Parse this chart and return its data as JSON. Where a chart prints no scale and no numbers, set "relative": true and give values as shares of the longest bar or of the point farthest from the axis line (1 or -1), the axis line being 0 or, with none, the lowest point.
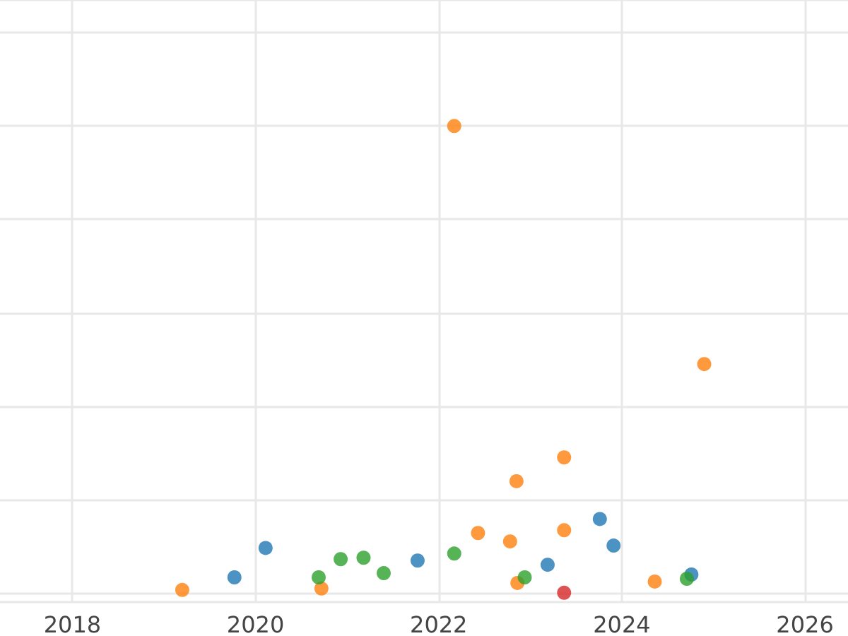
{
  "chart_data": {
    "type": "scatter",
    "relative": true,
    "xlim": [
      2017.21,
      2026.47
    ],
    "xticks": [
      2018,
      2020,
      2022,
      2024,
      2026
    ],
    "grid": true,
    "marker": "circle",
    "series": [
      {
        "color": "#1f77b4",
        "x": [
          2019.77,
          2020.11,
          2021.77,
          2023.19,
          2023.76,
          2023.91,
          2024.76
        ],
        "values": [
          0.033,
          0.096,
          0.069,
          0.06,
          0.158,
          0.101,
          0.039
        ]
      },
      {
        "color": "#ff7f0e",
        "x": [
          2019.2,
          2020.72,
          2022.17,
          2022.43,
          2022.78,
          2022.85,
          2022.86,
          2023.37,
          2023.37,
          2024.36,
          2024.9
        ],
        "values": [
          0.006,
          0.009,
          1,
          0.128,
          0.11,
          0.239,
          0.021,
          0.29,
          0.134,
          0.024,
          0.49
        ]
      },
      {
        "color": "#2ca02c",
        "x": [
          2020.69,
          2020.93,
          2021.18,
          2021.4,
          2022.17,
          2022.94,
          2024.71
        ],
        "values": [
          0.033,
          0.072,
          0.075,
          0.042,
          0.084,
          0.033,
          0.03
        ]
      },
      {
        "color": "#d62728",
        "x": [
          2023.37
        ],
        "values": [
          0
        ]
      }
    ]
  }
}
